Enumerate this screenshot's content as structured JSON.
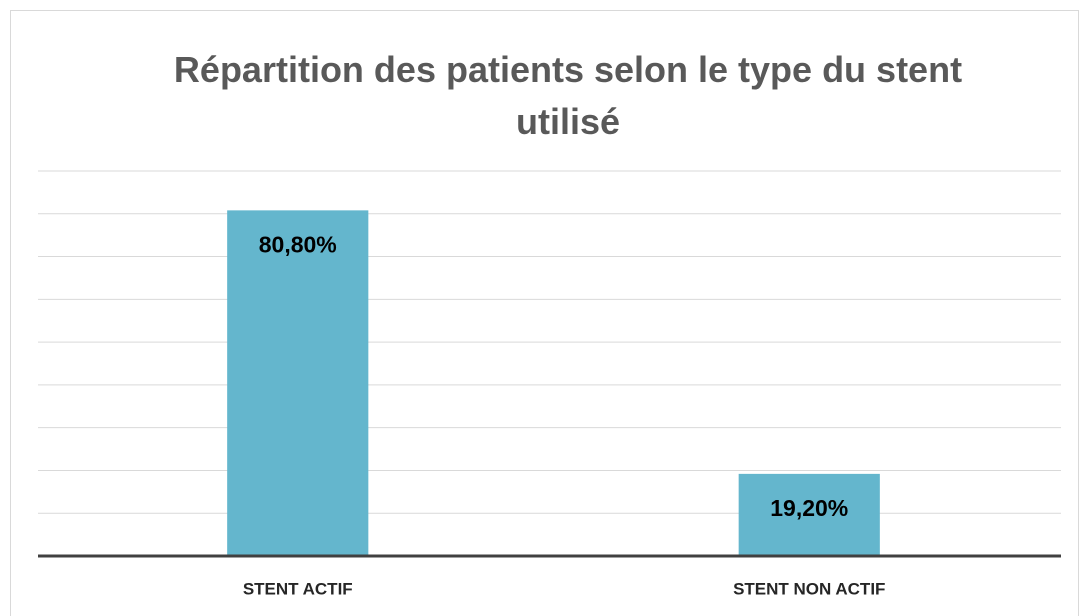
{
  "chart_data": {
    "type": "bar",
    "title": "Répartition des patients selon le type du stent utilisé",
    "categories": [
      "STENT ACTIF",
      "STENT NON ACTIF"
    ],
    "values": [
      80.8,
      19.2
    ],
    "value_labels": [
      "80,80%",
      "19,20%"
    ],
    "color": "#64b6cd",
    "ylim": [
      0,
      90
    ],
    "yticks": [
      0,
      10,
      20,
      30,
      40,
      50,
      60,
      70,
      80,
      90
    ],
    "grid": true
  }
}
